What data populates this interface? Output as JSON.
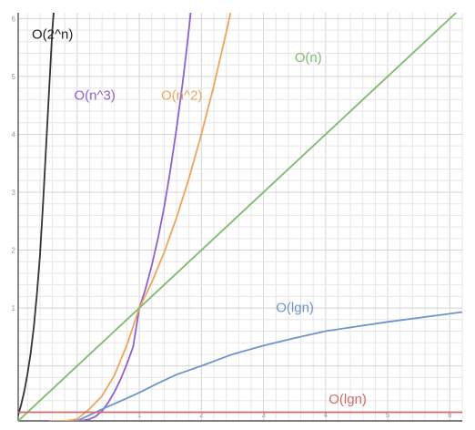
{
  "chart_data": {
    "type": "line",
    "x_ticks": [
      "1",
      "2",
      "3",
      "4",
      "5",
      "6"
    ],
    "y_ticks": [
      "1",
      "2",
      "3",
      "4",
      "5",
      "6"
    ],
    "xlim": [
      -0.95,
      6.2
    ],
    "ylim": [
      -0.95,
      6.1
    ],
    "grid": true,
    "series": [
      {
        "name": "O(2^n)",
        "color": "#333333",
        "x": [
          -1,
          -0.95,
          -0.9,
          -0.85,
          -0.8,
          -0.75,
          -0.7,
          -0.65,
          -0.6,
          -0.55,
          -0.5,
          -0.45,
          -0.4,
          -0.35,
          -0.3,
          -0.25,
          -0.2,
          -0.15,
          -0.1,
          -0.05,
          0
        ],
        "y": [
          -1,
          -0.85,
          -0.66,
          -0.43,
          -0.14,
          0.22,
          0.66,
          1.23,
          1.9,
          2.8,
          3.8,
          4.8,
          5.8,
          6.5,
          7.2,
          8,
          9,
          10,
          11,
          12,
          13
        ]
      },
      {
        "name": "O(n^3)",
        "color": "#8e5fd6",
        "x": [
          -0.55,
          -0.4,
          -0.25,
          -0.1,
          0,
          0.1,
          0.2,
          0.3,
          0.4,
          0.5,
          0.6,
          0.7,
          0.8,
          0.9,
          1,
          1.1,
          1.2,
          1.3,
          1.4,
          1.5,
          1.6,
          1.7,
          1.75,
          1.8,
          1.85
        ],
        "y": [
          -0.95,
          -0.95,
          -0.95,
          -0.95,
          -0.95,
          -0.94,
          -0.92,
          -0.87,
          -0.78,
          -0.63,
          -0.45,
          -0.23,
          0.03,
          0.33,
          1,
          1.33,
          1.73,
          2.2,
          2.74,
          3.38,
          4.1,
          4.91,
          5.36,
          5.83,
          6.33
        ]
      },
      {
        "name": "O(n^2)",
        "color": "#f0a35a",
        "x": [
          -0.45,
          -0.2,
          0,
          0.2,
          0.4,
          0.6,
          0.8,
          1,
          1.2,
          1.4,
          1.6,
          1.8,
          2,
          2.2,
          2.4,
          2.5,
          2.55
        ],
        "y": [
          -0.95,
          -0.95,
          -0.92,
          -0.74,
          -0.52,
          -0.16,
          0.36,
          1,
          1.44,
          1.96,
          2.56,
          3.24,
          4,
          4.84,
          5.76,
          6.25,
          6.5
        ]
      },
      {
        "name": "O(n)",
        "color": "#7cbd6b",
        "x": [
          -0.95,
          6.1
        ],
        "y": [
          -0.95,
          6.1
        ]
      },
      {
        "name": "O(lgn)",
        "color": "#6c95c9",
        "x": [
          0,
          0.2,
          0.5,
          0.8,
          1,
          1.3,
          1.6,
          2,
          2.5,
          3,
          3.5,
          4,
          4.5,
          5,
          5.5,
          6,
          6.2
        ],
        "y": [
          -0.95,
          -0.85,
          -0.7,
          -0.56,
          -0.46,
          -0.3,
          -0.15,
          0,
          0.2,
          0.35,
          0.48,
          0.6,
          0.68,
          0.76,
          0.83,
          0.9,
          0.93
        ]
      },
      {
        "name": "O(lgn)",
        "color": "#d06a6a",
        "x": [
          -0.95,
          6.2
        ],
        "y": [
          -0.8,
          -0.8
        ]
      }
    ],
    "labels": [
      {
        "text": "O(2^n)",
        "color": "#222222",
        "x": -0.73,
        "y": 5.65
      },
      {
        "text": "O(n^3)",
        "color": "#8e5fd6",
        "x": -0.05,
        "y": 4.6
      },
      {
        "text": "O(n^2)",
        "color": "#f0a35a",
        "x": 1.35,
        "y": 4.6
      },
      {
        "text": "O(n)",
        "color": "#7cbd6b",
        "x": 3.5,
        "y": 5.25
      },
      {
        "text": "O(lgn)",
        "color": "#6c95c9",
        "x": 3.2,
        "y": 0.93
      },
      {
        "text": "O(lgn)",
        "color": "#d06a6a",
        "x": 4.05,
        "y": -0.65
      }
    ]
  }
}
